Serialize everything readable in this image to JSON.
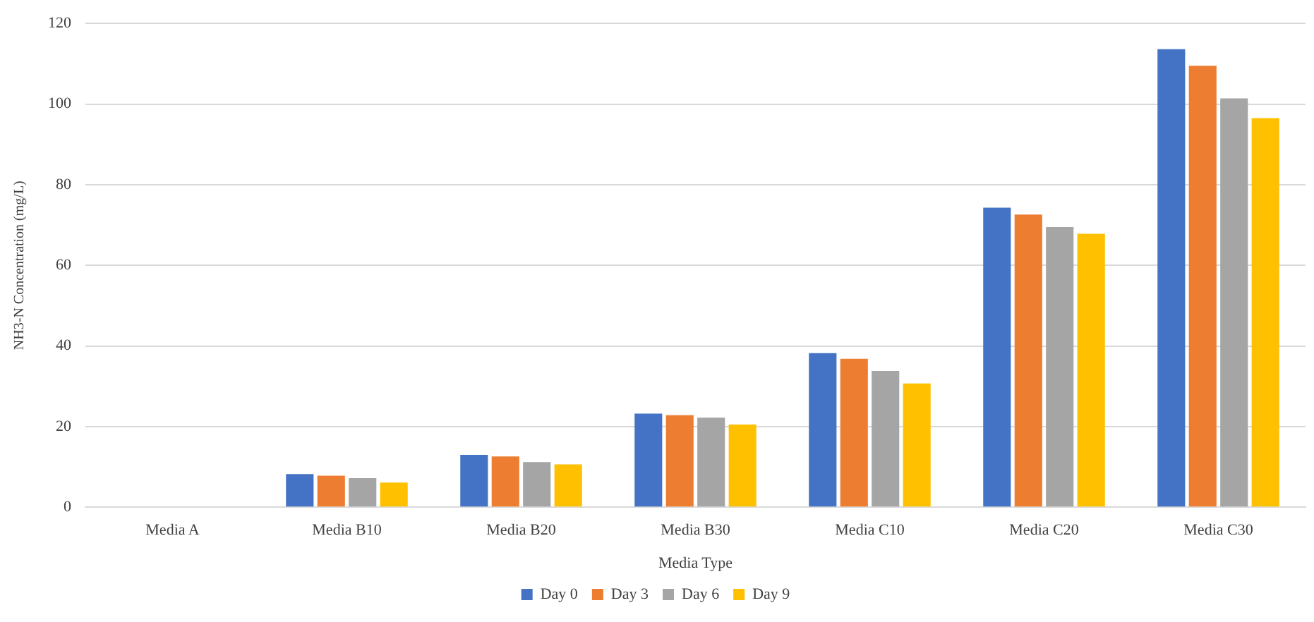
{
  "chart_data": {
    "type": "bar",
    "xlabel": "Media Type",
    "ylabel": "NH3-N Concentration (mg/L)",
    "categories": [
      "Media A",
      "Media B10",
      "Media B20",
      "Media B30",
      "Media C10",
      "Media C20",
      "Media C30"
    ],
    "series": [
      {
        "name": "Day 0",
        "color": "#4472c4",
        "values": [
          0,
          8.2,
          13,
          23.2,
          38.2,
          74.3,
          113.6
        ]
      },
      {
        "name": "Day 3",
        "color": "#ed7d31",
        "values": [
          0,
          7.8,
          12.6,
          22.8,
          36.8,
          72.6,
          109.5
        ]
      },
      {
        "name": "Day 6",
        "color": "#a5a5a5",
        "values": [
          0,
          7.2,
          11.2,
          22.2,
          33.8,
          69.5,
          101.4
        ]
      },
      {
        "name": "Day 9",
        "color": "#ffc000",
        "values": [
          0,
          6.1,
          10.6,
          20.5,
          30.7,
          67.8,
          96.5
        ]
      }
    ],
    "ylim": [
      0,
      120
    ],
    "yticks": [
      0,
      20,
      40,
      60,
      80,
      100,
      120
    ],
    "grid": "y",
    "legend": "bottom"
  }
}
